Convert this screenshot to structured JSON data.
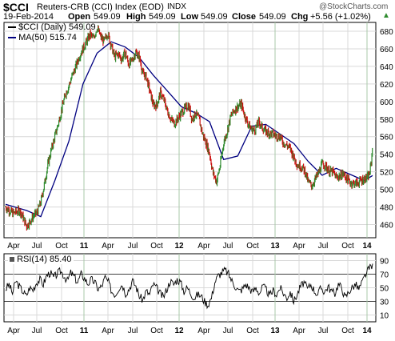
{
  "header": {
    "symbol": "$CCI",
    "description": "Reuters-CRB (CCI) Index (EOD)",
    "exchange": "INDX",
    "watermark": "@StockCharts.com",
    "date": "19-Feb-2014",
    "open_label": "Open",
    "open": "549.09",
    "high_label": "High",
    "high": "549.09",
    "low_label": "Low",
    "low": "549.09",
    "close_label": "Close",
    "close": "549.09",
    "chg_label": "Chg",
    "chg": "+5.56 (+1.02%)",
    "chg_arrow": "▲"
  },
  "colors": {
    "up": "#2e8b2e",
    "down": "#cc1010",
    "ma": "#000080",
    "rsi": "#000000",
    "grid": "#d9d9d9",
    "reference": "#000000"
  },
  "chart_data": [
    {
      "type": "line",
      "title": "Reuters-CRB (CCI) Index (EOD)",
      "series": [
        {
          "name": "$CCI (Daily) 549.09",
          "style": "bars",
          "x": [
            "2010-02-19",
            "2010-03-05",
            "2010-03-19",
            "2010-04-02",
            "2010-04-16",
            "2010-04-30",
            "2010-05-14",
            "2010-05-28",
            "2010-06-11",
            "2010-06-25",
            "2010-07-09",
            "2010-07-23",
            "2010-08-06",
            "2010-08-20",
            "2010-09-03",
            "2010-09-17",
            "2010-10-01",
            "2010-10-15",
            "2010-10-29",
            "2010-11-12",
            "2010-11-26",
            "2010-12-10",
            "2010-12-24",
            "2011-01-07",
            "2011-01-21",
            "2011-02-04",
            "2011-02-18",
            "2011-03-04",
            "2011-03-18",
            "2011-04-01",
            "2011-04-15",
            "2011-04-29",
            "2011-05-13",
            "2011-05-27",
            "2011-06-10",
            "2011-06-24",
            "2011-07-08",
            "2011-07-22",
            "2011-08-05",
            "2011-08-19",
            "2011-09-02",
            "2011-09-16",
            "2011-09-30",
            "2011-10-14",
            "2011-10-28",
            "2011-11-11",
            "2011-11-25",
            "2011-12-09",
            "2011-12-23",
            "2012-01-06",
            "2012-01-20",
            "2012-02-03",
            "2012-02-17",
            "2012-03-02",
            "2012-03-16",
            "2012-03-30",
            "2012-04-13",
            "2012-04-27",
            "2012-05-11",
            "2012-05-25",
            "2012-06-08",
            "2012-06-22",
            "2012-07-06",
            "2012-07-20",
            "2012-08-03",
            "2012-08-17",
            "2012-08-31",
            "2012-09-14",
            "2012-09-28",
            "2012-10-12",
            "2012-10-26",
            "2012-11-09",
            "2012-11-23",
            "2012-12-07",
            "2012-12-21",
            "2013-01-04",
            "2013-01-18",
            "2013-02-01",
            "2013-02-15",
            "2013-03-01",
            "2013-03-15",
            "2013-03-29",
            "2013-04-12",
            "2013-04-26",
            "2013-05-10",
            "2013-05-24",
            "2013-06-07",
            "2013-06-21",
            "2013-07-05",
            "2013-07-19",
            "2013-08-02",
            "2013-08-16",
            "2013-08-30",
            "2013-09-13",
            "2013-09-27",
            "2013-10-11",
            "2013-10-25",
            "2013-11-08",
            "2013-11-22",
            "2013-12-06",
            "2013-12-20",
            "2014-01-03",
            "2014-01-17",
            "2014-01-31",
            "2014-02-07",
            "2014-02-14",
            "2014-02-19"
          ],
          "values": [
            480,
            476,
            473,
            474,
            476,
            468,
            458,
            464,
            470,
            474,
            485,
            505,
            528,
            545,
            560,
            575,
            592,
            608,
            618,
            630,
            640,
            652,
            660,
            668,
            676,
            672,
            684,
            674,
            668,
            678,
            664,
            651,
            654,
            648,
            656,
            642,
            647,
            656,
            651,
            632,
            628,
            612,
            596,
            596,
            610,
            602,
            589,
            580,
            575,
            581,
            587,
            592,
            596,
            580,
            586,
            580,
            563,
            553,
            541,
            518,
            509,
            527,
            553,
            566,
            583,
            590,
            594,
            597,
            584,
            574,
            568,
            568,
            577,
            570,
            566,
            564,
            563,
            561,
            560,
            553,
            550,
            546,
            536,
            528,
            526,
            522,
            509,
            504,
            511,
            519,
            529,
            527,
            520,
            520,
            514,
            515,
            518,
            512,
            508,
            507,
            507,
            510,
            512,
            514,
            518,
            532,
            549
          ]
        },
        {
          "name": "MA(50) 515.74",
          "x": [
            "2010-02-19",
            "2010-05-14",
            "2010-07-09",
            "2010-09-03",
            "2010-10-29",
            "2010-12-24",
            "2011-02-18",
            "2011-04-15",
            "2011-06-10",
            "2011-08-05",
            "2011-09-30",
            "2011-11-25",
            "2012-01-20",
            "2012-03-16",
            "2012-05-11",
            "2012-07-06",
            "2012-08-31",
            "2012-10-26",
            "2012-12-21",
            "2013-02-15",
            "2013-04-12",
            "2013-06-07",
            "2013-08-02",
            "2013-09-27",
            "2013-11-22",
            "2014-01-17",
            "2014-02-19"
          ],
          "values": [
            483,
            476,
            469,
            510,
            555,
            620,
            655,
            668,
            662,
            650,
            630,
            612,
            594,
            587,
            577,
            534,
            538,
            572,
            574,
            563,
            552,
            532,
            516,
            524,
            517,
            510,
            515.74
          ]
        }
      ],
      "ylim": [
        445,
        690
      ],
      "y_ticks": [
        460,
        480,
        500,
        520,
        540,
        560,
        580,
        600,
        620,
        640,
        660,
        680
      ],
      "x_tick_labels": [
        "Apr",
        "Jul",
        "Oct",
        "11",
        "Apr",
        "Jul",
        "Oct",
        "12",
        "Apr",
        "Jul",
        "Oct",
        "13",
        "Apr",
        "Jul",
        "Oct",
        "14"
      ],
      "grid": true,
      "legend": "top-left"
    },
    {
      "type": "line",
      "series": [
        {
          "name": "RSI(14) 85.40",
          "x_start": "2010-02-19",
          "x_end": "2014-02-19",
          "values": [
            48,
            55,
            42,
            60,
            52,
            45,
            38,
            50,
            47,
            58,
            62,
            55,
            68,
            72,
            65,
            70,
            75,
            68,
            60,
            72,
            66,
            58,
            70,
            64,
            56,
            62,
            58,
            48,
            52,
            65,
            58,
            44,
            40,
            50,
            55,
            42,
            48,
            60,
            52,
            38,
            32,
            45,
            40,
            55,
            50,
            42,
            36,
            48,
            60,
            55,
            62,
            58,
            45,
            50,
            42,
            35,
            40,
            38,
            30,
            25,
            35,
            58,
            68,
            72,
            76,
            70,
            60,
            52,
            45,
            48,
            55,
            50,
            44,
            50,
            42,
            52,
            47,
            38,
            46,
            40,
            50,
            42,
            35,
            44,
            30,
            40,
            52,
            58,
            48,
            55,
            46,
            40,
            50,
            44,
            52,
            45,
            42,
            55,
            50,
            35,
            44,
            50,
            55,
            48,
            58,
            70,
            78,
            85.4
          ]
        }
      ],
      "ylim": [
        0,
        100
      ],
      "y_ticks": [
        10,
        30,
        50,
        70,
        90
      ],
      "reference_lines": [
        30,
        70
      ],
      "x_tick_labels": [
        "Apr",
        "Jul",
        "Oct",
        "11",
        "Apr",
        "Jul",
        "Oct",
        "12",
        "Apr",
        "Jul",
        "Oct",
        "13",
        "Apr",
        "Jul",
        "Oct",
        "14"
      ],
      "grid": true
    }
  ]
}
